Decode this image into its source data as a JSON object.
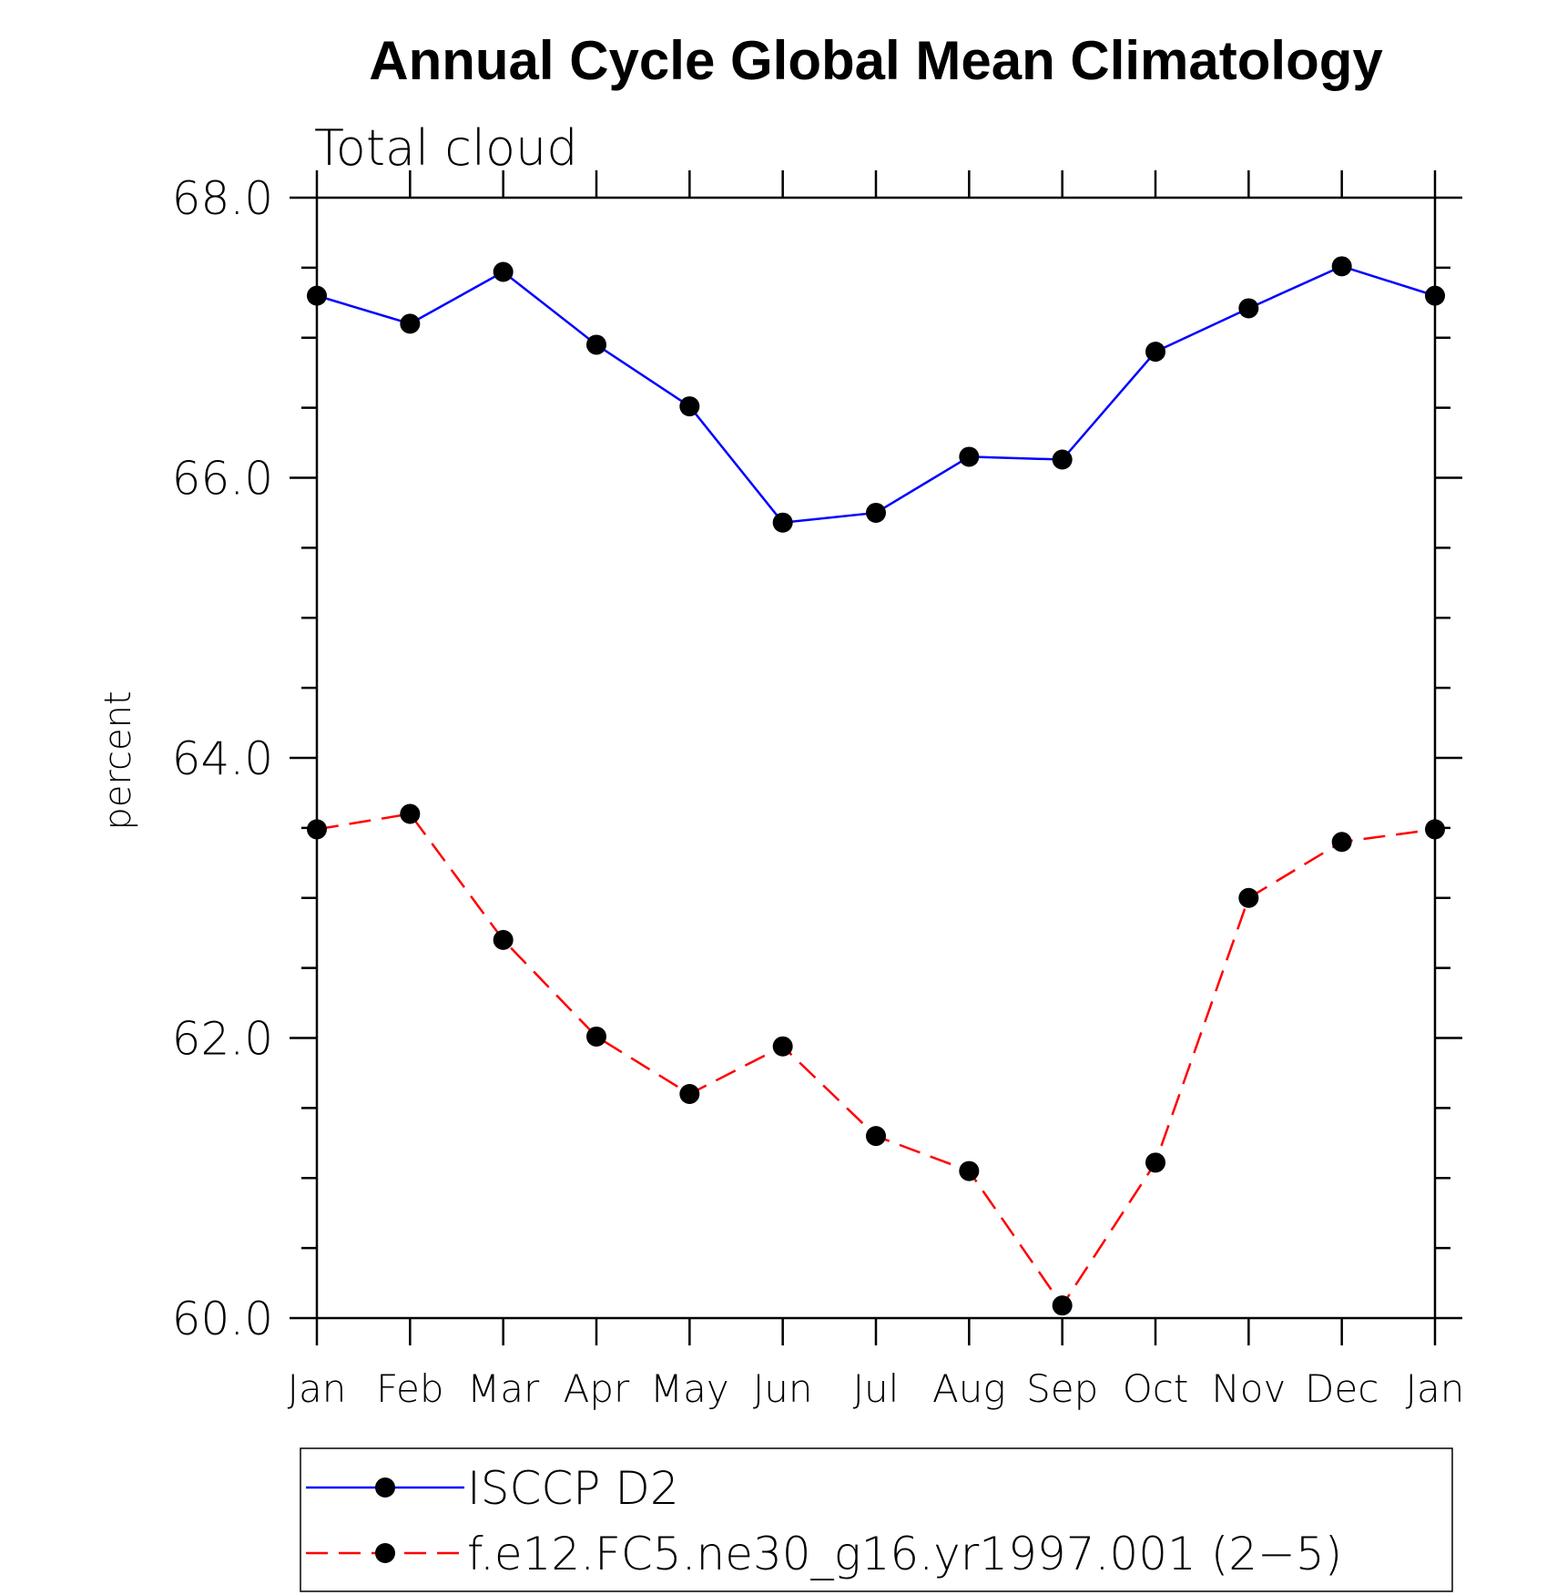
{
  "chart_data": {
    "type": "line",
    "title": "Annual Cycle Global Mean Climatology",
    "subtitle": "Total cloud",
    "xlabel": "",
    "ylabel": "percent",
    "categories": [
      "Jan",
      "Feb",
      "Mar",
      "Apr",
      "May",
      "Jun",
      "Jul",
      "Aug",
      "Sep",
      "Oct",
      "Nov",
      "Dec",
      "Jan"
    ],
    "ylim": [
      60.0,
      68.0
    ],
    "yticks": [
      "60.0",
      "62.0",
      "64.0",
      "66.0",
      "68.0"
    ],
    "grid": false,
    "legend_position": "bottom",
    "series": [
      {
        "name": "ISCCP D2",
        "color": "#0000ff",
        "dash": "solid",
        "marker": "filled-circle",
        "values": [
          67.3,
          67.1,
          67.47,
          66.95,
          66.51,
          65.68,
          65.75,
          66.15,
          66.13,
          66.9,
          67.21,
          67.51,
          67.3
        ]
      },
      {
        "name": "f.e12.FC5.ne30_g16.yr1997.001 (2−5)",
        "color": "#ff0000",
        "dash": "dashed",
        "marker": "filled-circle",
        "values": [
          63.49,
          63.6,
          62.7,
          62.01,
          61.6,
          61.94,
          61.3,
          61.05,
          60.09,
          61.11,
          63.0,
          63.4,
          63.49
        ]
      }
    ]
  }
}
